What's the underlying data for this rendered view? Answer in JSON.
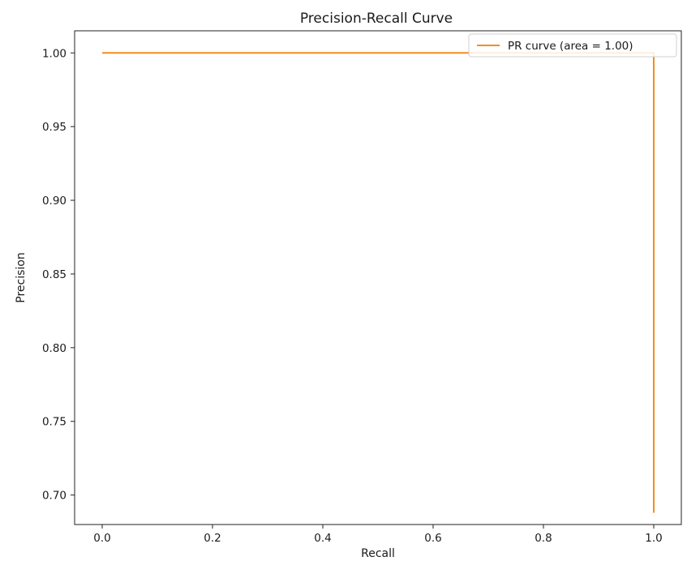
{
  "chart_data": {
    "type": "line",
    "title": "Precision-Recall Curve",
    "xlabel": "Recall",
    "ylabel": "Precision",
    "xlim": [
      -0.05,
      1.05
    ],
    "ylim": [
      0.68,
      1.015
    ],
    "xticks": [
      0.0,
      0.2,
      0.4,
      0.6,
      0.8,
      1.0
    ],
    "xtick_labels": [
      "0.0",
      "0.2",
      "0.4",
      "0.6",
      "0.8",
      "1.0"
    ],
    "yticks": [
      0.7,
      0.75,
      0.8,
      0.85,
      0.9,
      0.95,
      1.0
    ],
    "ytick_labels": [
      "0.70",
      "0.75",
      "0.80",
      "0.85",
      "0.90",
      "0.95",
      "1.00"
    ],
    "grid": false,
    "legend_position": "top-right",
    "series": [
      {
        "name": "PR curve (area = 1.00)",
        "color": "#f28e1c",
        "x": [
          0.0,
          1.0,
          1.0
        ],
        "y": [
          1.0,
          1.0,
          0.688
        ]
      }
    ]
  }
}
